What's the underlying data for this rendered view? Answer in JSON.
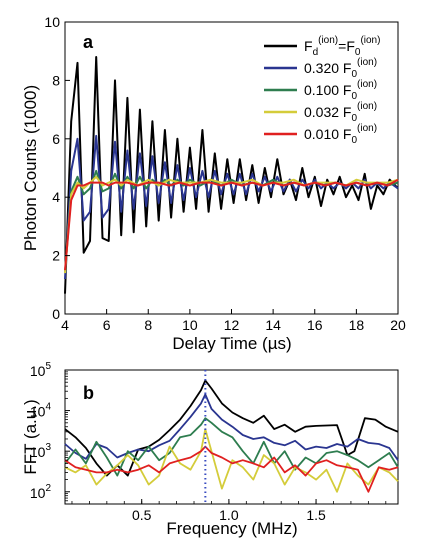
{
  "chart_data": [
    {
      "panel_label": "a",
      "type": "line",
      "xlabel": "Delay Time (µs)",
      "ylabel": "Photon Counts (1000)",
      "xlim": [
        4,
        20
      ],
      "ylim": [
        0,
        10
      ],
      "xticks": [
        4,
        6,
        8,
        10,
        12,
        14,
        16,
        18,
        20
      ],
      "yticks": [
        0,
        2,
        4,
        6,
        8,
        10
      ],
      "grid": false,
      "legend_position": "top-right",
      "series": [
        {
          "name_parts": [
            "F",
            "d",
            "(ion)",
            "=F",
            "0",
            "(ion)"
          ],
          "color": "#000000",
          "x": [
            4.0,
            4.3,
            4.6,
            4.9,
            5.2,
            5.5,
            5.8,
            6.1,
            6.4,
            6.7,
            7.0,
            7.3,
            7.6,
            7.9,
            8.2,
            8.5,
            8.8,
            9.1,
            9.4,
            9.7,
            10.0,
            10.3,
            10.6,
            10.9,
            11.2,
            11.5,
            11.8,
            12.1,
            12.4,
            12.7,
            13.0,
            13.3,
            13.6,
            13.9,
            14.2,
            14.5,
            14.8,
            15.1,
            15.4,
            15.7,
            16.0,
            16.3,
            16.6,
            16.9,
            17.2,
            17.5,
            17.8,
            18.1,
            18.4,
            18.7,
            19.0,
            19.3,
            19.6,
            20.0
          ],
          "y": [
            0.7,
            6.6,
            8.6,
            2.1,
            2.5,
            8.8,
            2.6,
            2.5,
            8.0,
            2.7,
            7.4,
            2.8,
            7.0,
            3.0,
            6.6,
            3.2,
            6.3,
            3.3,
            6.0,
            3.5,
            5.7,
            3.6,
            6.3,
            3.5,
            5.5,
            3.6,
            5.3,
            3.8,
            5.3,
            3.9,
            5.1,
            3.8,
            5.0,
            4.0,
            5.3,
            4.1,
            4.6,
            3.9,
            5.0,
            4.0,
            4.7,
            3.7,
            4.6,
            4.1,
            4.7,
            4.0,
            4.4,
            3.9,
            4.8,
            3.6,
            4.4,
            4.1,
            4.6,
            4.3
          ]
        },
        {
          "name_parts": [
            "0.320 F",
            "0",
            "(ion)"
          ],
          "color": "#2a3590",
          "x": [
            4.0,
            4.3,
            4.6,
            4.9,
            5.2,
            5.5,
            5.8,
            6.1,
            6.4,
            6.7,
            7.0,
            7.3,
            7.6,
            7.9,
            8.2,
            8.5,
            8.8,
            9.1,
            9.4,
            9.7,
            10.0,
            10.3,
            10.6,
            10.9,
            11.2,
            11.5,
            11.8,
            12.1,
            12.4,
            12.7,
            13.0,
            13.3,
            13.6,
            13.9,
            14.2,
            14.5,
            14.8,
            15.1,
            15.4,
            15.7,
            16.0,
            16.3,
            16.6,
            16.9,
            17.2,
            17.5,
            17.8,
            18.1,
            18.4,
            18.7,
            19.0,
            19.3,
            19.6,
            20.0
          ],
          "y": [
            1.2,
            4.9,
            6.0,
            3.2,
            3.5,
            6.1,
            3.3,
            3.6,
            5.9,
            3.5,
            5.6,
            3.6,
            5.5,
            3.7,
            5.4,
            3.8,
            5.2,
            3.8,
            5.1,
            3.9,
            5.0,
            4.0,
            4.9,
            4.0,
            4.9,
            4.1,
            4.8,
            4.1,
            4.8,
            4.1,
            4.8,
            4.2,
            4.7,
            4.2,
            4.7,
            4.2,
            4.6,
            4.2,
            4.6,
            4.3,
            4.6,
            4.3,
            4.5,
            4.3,
            4.5,
            4.3,
            4.5,
            4.3,
            4.6,
            4.3,
            4.5,
            4.3,
            4.5,
            4.3
          ]
        },
        {
          "name_parts": [
            "0.100 F",
            "0",
            "(ion)"
          ],
          "color": "#2e7d4f",
          "x": [
            4.0,
            4.3,
            4.6,
            4.9,
            5.2,
            5.5,
            5.8,
            6.1,
            6.4,
            6.7,
            7.0,
            7.3,
            7.6,
            7.9,
            8.2,
            8.5,
            8.8,
            9.1,
            9.4,
            9.7,
            10.0,
            10.5,
            11.0,
            11.5,
            12.0,
            12.5,
            13.0,
            13.5,
            14.0,
            14.5,
            15.0,
            15.5,
            16.0,
            16.5,
            17.0,
            17.5,
            18.0,
            18.5,
            19.0,
            19.5,
            20.0
          ],
          "y": [
            1.4,
            4.2,
            4.7,
            4.1,
            4.3,
            4.9,
            4.2,
            4.3,
            4.8,
            4.3,
            4.7,
            4.3,
            4.7,
            4.3,
            4.6,
            4.4,
            4.6,
            4.4,
            4.6,
            4.4,
            4.6,
            4.4,
            4.6,
            4.4,
            4.6,
            4.4,
            4.5,
            4.4,
            4.6,
            4.4,
            4.5,
            4.4,
            4.5,
            4.4,
            4.5,
            4.4,
            4.5,
            4.4,
            4.5,
            4.4,
            4.5
          ]
        },
        {
          "name_parts": [
            "0.032 F",
            "0",
            "(ion)"
          ],
          "color": "#d4cc3a",
          "x": [
            4.0,
            4.3,
            4.6,
            4.9,
            5.2,
            5.5,
            5.8,
            6.1,
            6.4,
            6.7,
            7.0,
            7.5,
            8.0,
            8.5,
            9.0,
            9.5,
            10.0,
            10.5,
            11.0,
            11.5,
            12.0,
            12.5,
            13.0,
            13.5,
            14.0,
            14.5,
            15.0,
            15.5,
            16.0,
            16.5,
            17.0,
            17.5,
            18.0,
            18.5,
            19.0,
            19.5,
            20.0
          ],
          "y": [
            1.4,
            4.1,
            4.5,
            4.3,
            4.5,
            4.7,
            4.4,
            4.5,
            4.6,
            4.4,
            4.6,
            4.4,
            4.6,
            4.4,
            4.6,
            4.5,
            4.5,
            4.5,
            4.6,
            4.5,
            4.5,
            4.5,
            4.6,
            4.4,
            4.5,
            4.5,
            4.6,
            4.4,
            4.5,
            4.5,
            4.5,
            4.4,
            4.6,
            4.5,
            4.5,
            4.5,
            4.6
          ]
        },
        {
          "name_parts": [
            "0.010 F",
            "0",
            "(ion)"
          ],
          "color": "#e02020",
          "x": [
            4.0,
            4.3,
            4.6,
            4.9,
            5.2,
            5.5,
            5.8,
            6.1,
            6.4,
            6.7,
            7.0,
            7.5,
            8.0,
            8.5,
            9.0,
            9.5,
            10.0,
            10.5,
            11.0,
            11.5,
            12.0,
            12.5,
            13.0,
            13.5,
            14.0,
            14.5,
            15.0,
            15.5,
            16.0,
            16.5,
            17.0,
            17.5,
            18.0,
            18.5,
            19.0,
            19.5,
            20.0
          ],
          "y": [
            1.5,
            3.9,
            4.4,
            4.4,
            4.5,
            4.5,
            4.5,
            4.4,
            4.5,
            4.5,
            4.5,
            4.4,
            4.5,
            4.5,
            4.4,
            4.5,
            4.4,
            4.5,
            4.5,
            4.4,
            4.5,
            4.4,
            4.5,
            4.4,
            4.5,
            4.4,
            4.5,
            4.4,
            4.5,
            4.4,
            4.5,
            4.4,
            4.5,
            4.4,
            4.5,
            4.4,
            4.6
          ]
        }
      ]
    },
    {
      "panel_label": "b",
      "type": "line",
      "xlabel": "Frequency (MHz)",
      "ylabel": "FFT (a.u.)",
      "yscale": "log",
      "xlim": [
        0.06,
        1.97
      ],
      "ylim": [
        50,
        100000
      ],
      "xticks": [
        0.5,
        1.0,
        1.5
      ],
      "xtick_labels": [
        "0.5",
        "1.0",
        "1.5"
      ],
      "yticks": [
        100,
        1000,
        10000,
        100000
      ],
      "ytick_labels": [
        [
          "10",
          "2"
        ],
        [
          "10",
          "3"
        ],
        [
          "10",
          "4"
        ],
        [
          "10",
          "5"
        ]
      ],
      "vline": {
        "x": 0.865,
        "color": "#3a4cc0",
        "style": "dotted"
      },
      "series": [
        {
          "color": "#000000",
          "x": [
            0.06,
            0.12,
            0.18,
            0.24,
            0.3,
            0.36,
            0.42,
            0.48,
            0.54,
            0.6,
            0.66,
            0.72,
            0.78,
            0.84,
            0.865,
            0.9,
            0.96,
            1.02,
            1.08,
            1.14,
            1.2,
            1.26,
            1.32,
            1.38,
            1.44,
            1.5,
            1.56,
            1.62,
            1.68,
            1.72,
            1.78,
            1.84,
            1.9,
            1.97
          ],
          "y": [
            3500,
            2200,
            1200,
            500,
            250,
            450,
            250,
            1100,
            1300,
            1900,
            3300,
            6000,
            13000,
            32000,
            55000,
            35000,
            15000,
            9000,
            6500,
            5000,
            7500,
            3500,
            4500,
            3000,
            4000,
            4200,
            4300,
            4400,
            800,
            1000,
            6500,
            6000,
            4000,
            3000
          ]
        },
        {
          "color": "#2a3590",
          "x": [
            0.06,
            0.12,
            0.18,
            0.24,
            0.3,
            0.36,
            0.42,
            0.48,
            0.54,
            0.6,
            0.66,
            0.72,
            0.78,
            0.84,
            0.865,
            0.9,
            0.96,
            1.02,
            1.08,
            1.14,
            1.2,
            1.26,
            1.32,
            1.38,
            1.44,
            1.5,
            1.56,
            1.62,
            1.68,
            1.74,
            1.8,
            1.86,
            1.92,
            1.97
          ],
          "y": [
            1500,
            900,
            650,
            1500,
            1200,
            700,
            900,
            1100,
            1000,
            1400,
            1800,
            3500,
            7000,
            15000,
            25000,
            11000,
            6000,
            4000,
            2500,
            2000,
            2200,
            1600,
            1400,
            1800,
            1100,
            1300,
            1200,
            1500,
            1300,
            2000,
            1600,
            1500,
            1200,
            600
          ]
        },
        {
          "color": "#2e7d4f",
          "x": [
            0.06,
            0.12,
            0.18,
            0.24,
            0.3,
            0.36,
            0.42,
            0.48,
            0.54,
            0.6,
            0.66,
            0.72,
            0.78,
            0.84,
            0.865,
            0.9,
            0.96,
            1.02,
            1.08,
            1.14,
            1.2,
            1.26,
            1.32,
            1.38,
            1.44,
            1.5,
            1.56,
            1.62,
            1.68,
            1.74,
            1.8,
            1.86,
            1.92,
            1.97
          ],
          "y": [
            500,
            1100,
            500,
            1700,
            700,
            250,
            1000,
            600,
            1300,
            600,
            900,
            2200,
            2500,
            4500,
            6500,
            5000,
            3000,
            2200,
            1000,
            500,
            1700,
            500,
            1000,
            350,
            700,
            500,
            900,
            1000,
            800,
            600,
            400,
            600,
            900,
            400
          ]
        },
        {
          "color": "#d4cc3a",
          "x": [
            0.06,
            0.12,
            0.18,
            0.24,
            0.3,
            0.36,
            0.42,
            0.48,
            0.54,
            0.6,
            0.66,
            0.72,
            0.78,
            0.84,
            0.865,
            0.9,
            0.96,
            1.02,
            1.08,
            1.14,
            1.2,
            1.26,
            1.32,
            1.38,
            1.44,
            1.5,
            1.56,
            1.62,
            1.68,
            1.74,
            1.8,
            1.86,
            1.92,
            1.97
          ],
          "y": [
            400,
            300,
            450,
            150,
            280,
            450,
            800,
            450,
            150,
            250,
            1300,
            500,
            350,
            1000,
            3500,
            1000,
            120,
            600,
            400,
            200,
            800,
            500,
            150,
            400,
            300,
            200,
            350,
            100,
            500,
            250,
            150,
            400,
            300,
            180
          ]
        },
        {
          "color": "#e02020",
          "x": [
            0.06,
            0.12,
            0.18,
            0.24,
            0.3,
            0.36,
            0.42,
            0.48,
            0.54,
            0.6,
            0.66,
            0.72,
            0.78,
            0.84,
            0.865,
            0.9,
            0.96,
            1.02,
            1.08,
            1.14,
            1.2,
            1.26,
            1.32,
            1.38,
            1.44,
            1.5,
            1.56,
            1.62,
            1.68,
            1.74,
            1.8,
            1.86,
            1.92,
            1.97
          ],
          "y": [
            600,
            400,
            350,
            300,
            300,
            350,
            300,
            350,
            450,
            300,
            500,
            600,
            700,
            1000,
            1300,
            900,
            700,
            500,
            600,
            500,
            400,
            700,
            300,
            450,
            250,
            500,
            600,
            450,
            400,
            350,
            100,
            400,
            350,
            400
          ]
        }
      ]
    }
  ]
}
